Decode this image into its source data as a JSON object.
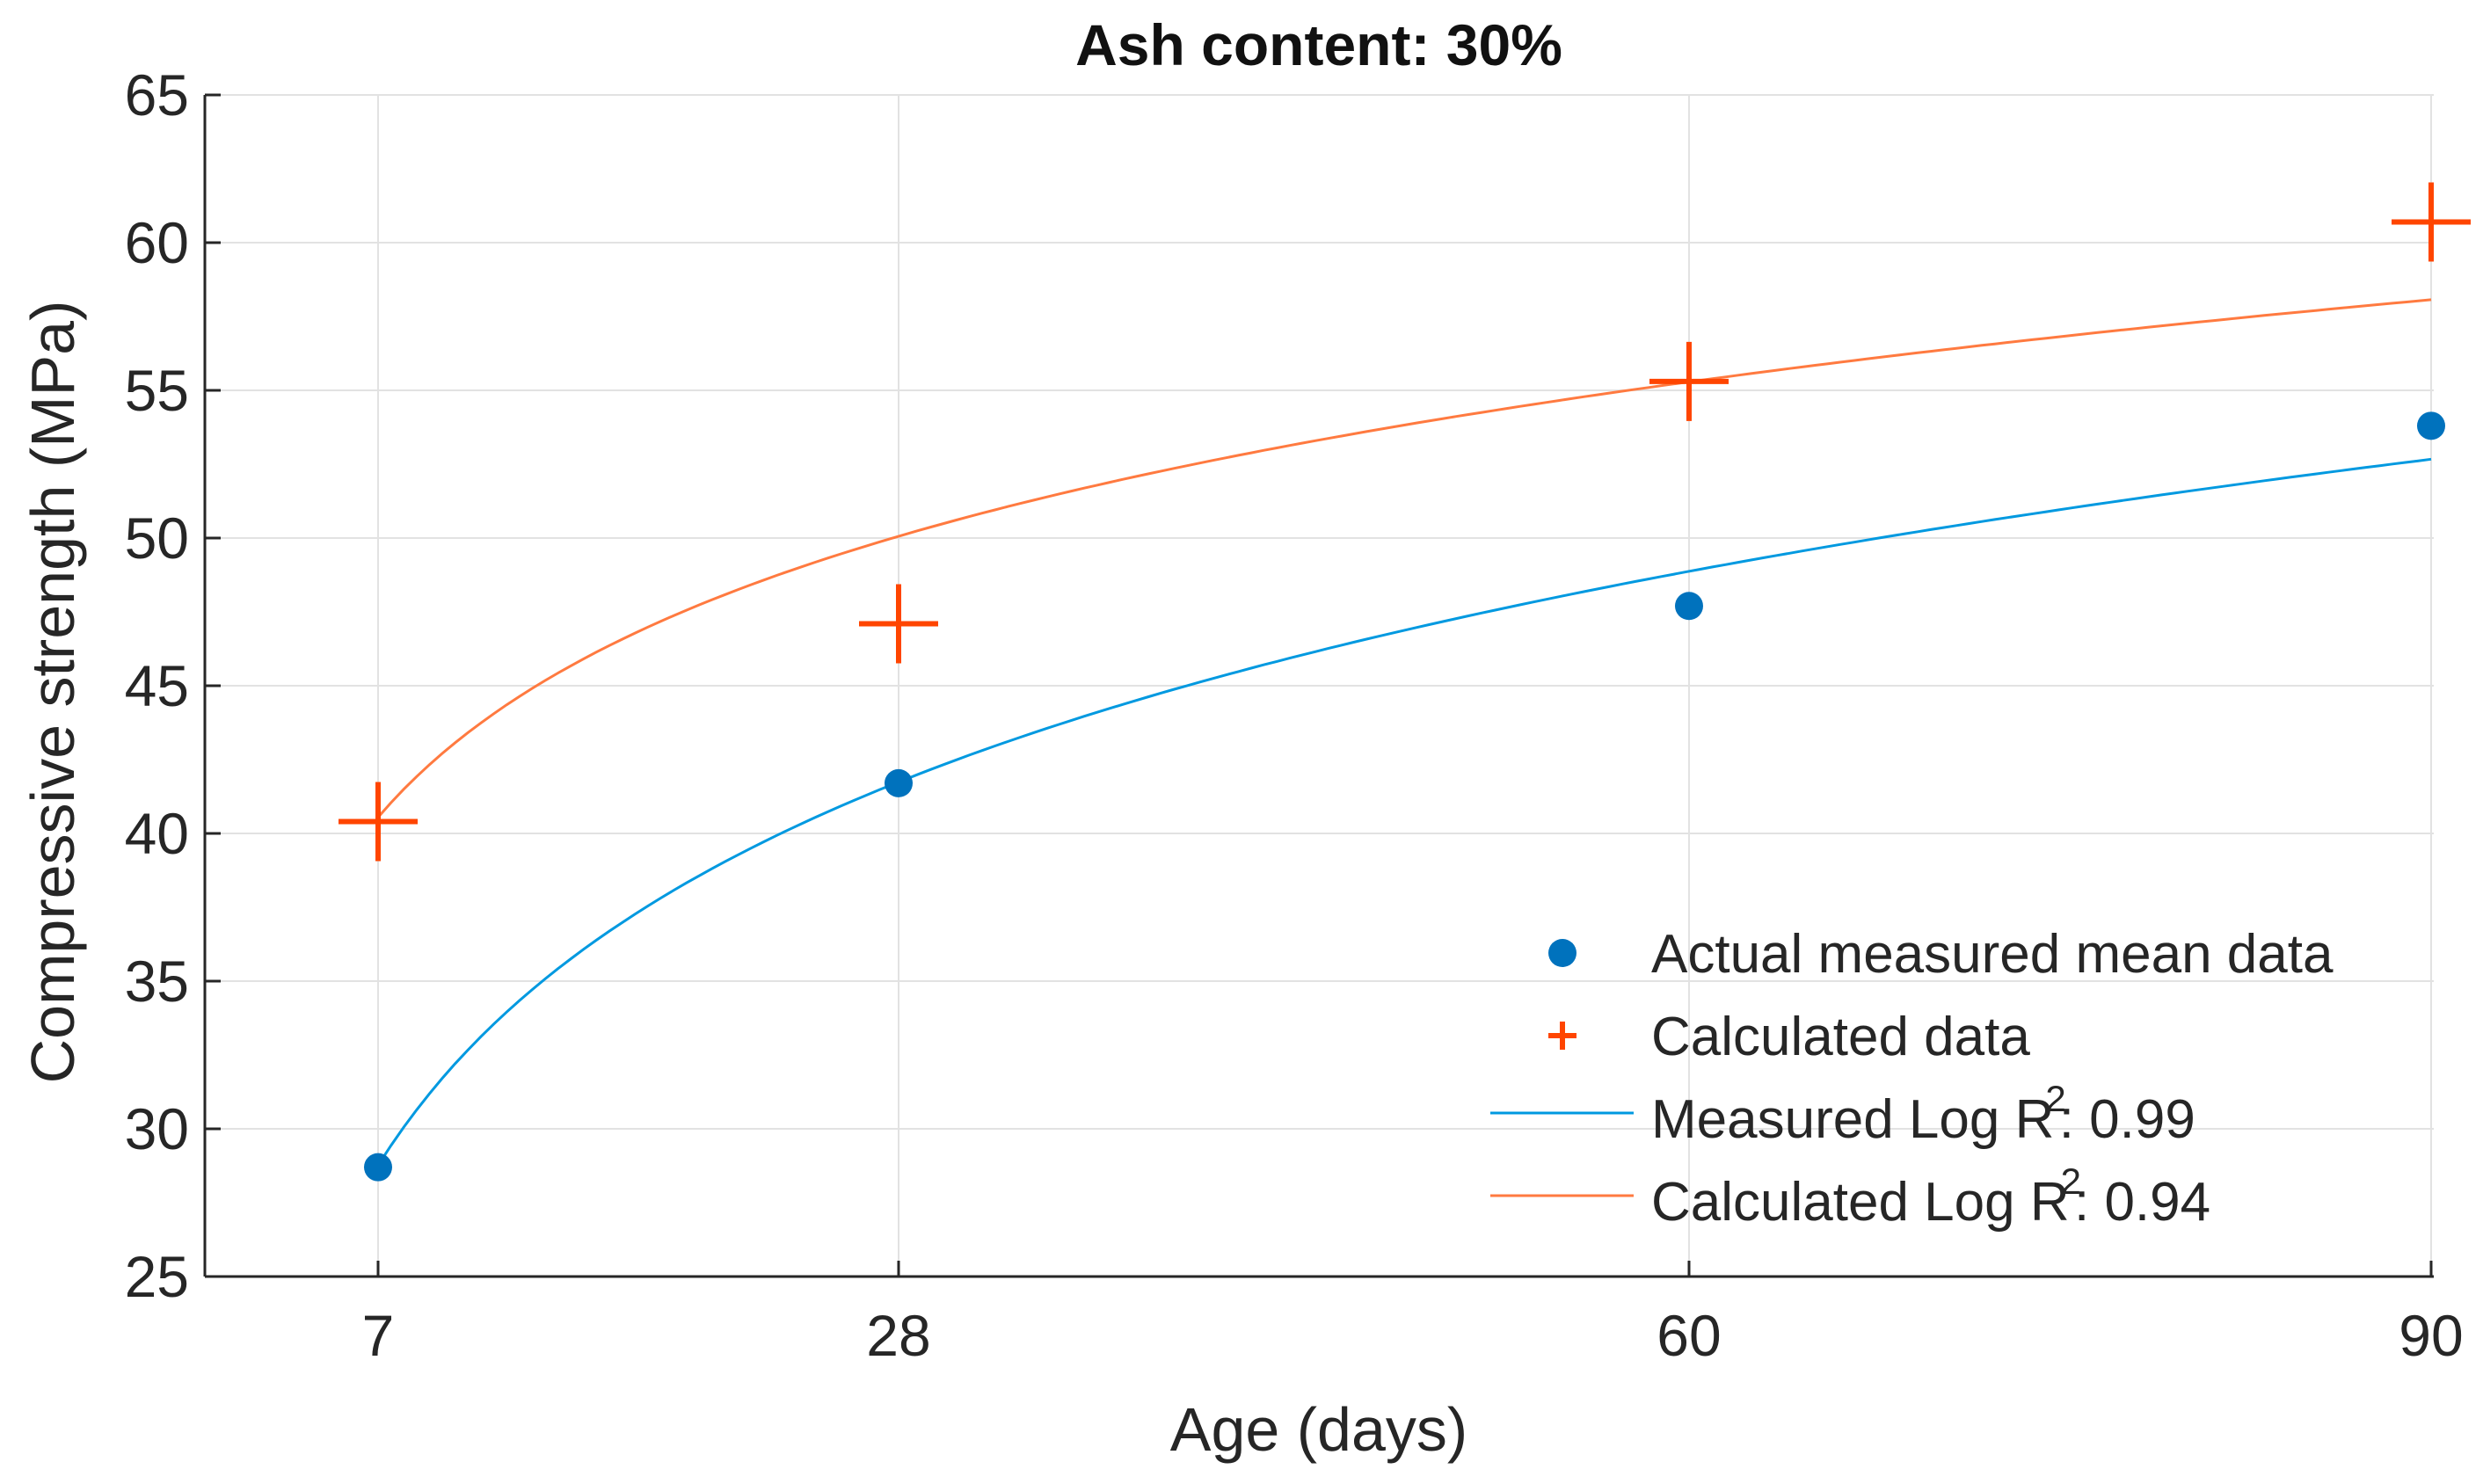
{
  "chart_data": {
    "type": "scatter",
    "title": "Ash content: 30%",
    "xlabel": "Age (days)",
    "ylabel": "Compressive strength (MPa)",
    "xlim": [
      0,
      90
    ],
    "ylim": [
      25,
      65
    ],
    "x_tick_values": [
      7,
      28,
      60,
      90
    ],
    "x_tick_labels": [
      "7",
      "28",
      "60",
      "90"
    ],
    "y_tick_values": [
      25,
      30,
      35,
      40,
      45,
      50,
      55,
      60,
      65
    ],
    "y_tick_labels": [
      "25",
      "30",
      "35",
      "40",
      "45",
      "50",
      "55",
      "60",
      "65"
    ],
    "grid": true,
    "legend_position": "bottom-right",
    "series": [
      {
        "name": "Actual measured mean data",
        "kind": "marker-dot",
        "color": "#0072BD",
        "x": [
          7,
          28,
          60,
          90
        ],
        "y": [
          28.7,
          41.7,
          47.7,
          53.8
        ]
      },
      {
        "name": "Calculated data",
        "kind": "marker-plus",
        "color": "#FF4500",
        "x": [
          7,
          28,
          60,
          90
        ],
        "y": [
          40.4,
          47.1,
          55.3,
          60.7
        ]
      },
      {
        "name": "Measured Log",
        "kind": "log-fit",
        "color": "#0099E0",
        "r2_text": ": 0.99",
        "x_range": [
          7,
          90
        ],
        "coef_a": 9.36,
        "coef_b": 10.55
      },
      {
        "name": "Calculated Log",
        "kind": "log-fit",
        "color": "#FF7A40",
        "r2_text": ": 0.94",
        "x_range": [
          7,
          90
        ],
        "coef_a": 6.86,
        "coef_b": 27.2
      }
    ],
    "legend": [
      {
        "label": "Actual measured mean data",
        "symbol": "dot",
        "color": "#0072BD"
      },
      {
        "label": "Calculated data",
        "symbol": "plus",
        "color": "#FF4500"
      },
      {
        "label": "Measured Log R",
        "symbol": "line",
        "color": "#0099E0",
        "sup": "2",
        "suffix": ": 0.99"
      },
      {
        "label": "Calculated Log R",
        "symbol": "line",
        "color": "#FF7A40",
        "sup": "2",
        "suffix": ": 0.94"
      }
    ]
  }
}
